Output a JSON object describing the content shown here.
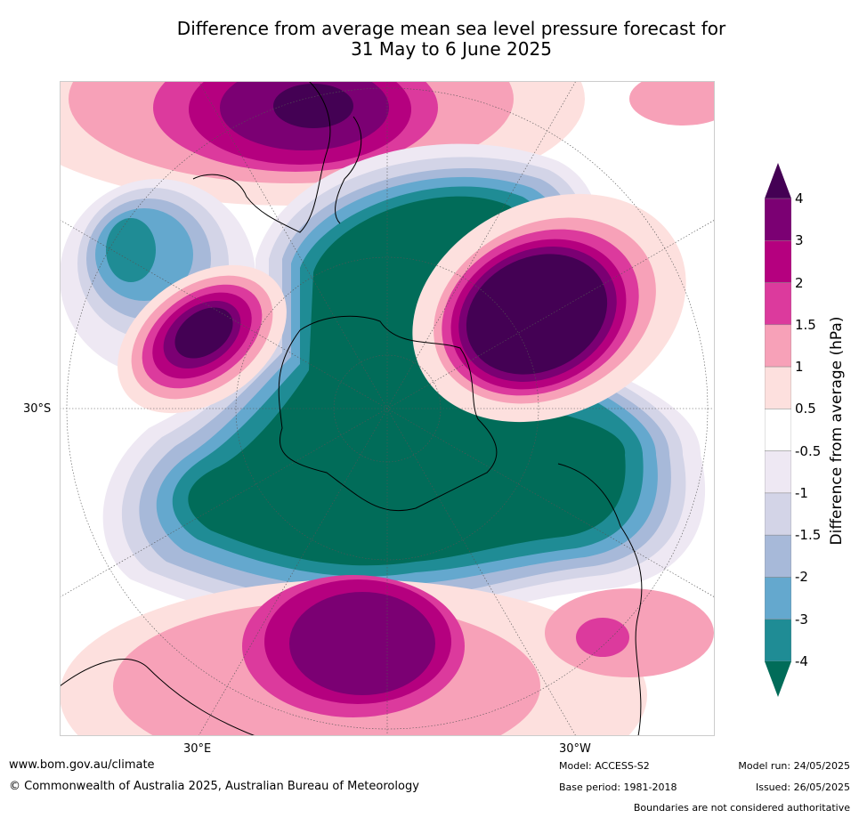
{
  "title": {
    "line1": "Difference from average mean sea level pressure forecast for",
    "line2": "31 May to 6 June 2025"
  },
  "map": {
    "lat_label": "30°S",
    "lon_label_left": "30°E",
    "lon_label_right": "30°W"
  },
  "colorbar": {
    "label": "Difference from average (hPa)",
    "ticks": [
      "4",
      "3",
      "2",
      "1.5",
      "1",
      "0.5",
      "-0.5",
      "-1",
      "-1.5",
      "-2",
      "-3",
      "-4"
    ],
    "colors": [
      "#440154",
      "#7b0073",
      "#b5007f",
      "#dc3a9d",
      "#f7a1b8",
      "#fde0de",
      "#ffffff",
      "#eee8f3",
      "#d3d4e7",
      "#a7b9d9",
      "#64a8ce",
      "#1f8c95",
      "#016c59"
    ]
  },
  "footer": {
    "website": "www.bom.gov.au/climate",
    "copyright": "© Commonwealth of Australia 2025, Australian Bureau of Meteorology",
    "model": "Model: ACCESS-S2",
    "base_period": "Base period: 1981-2018",
    "model_run": "Model run: 24/05/2025",
    "issued": "Issued: 26/05/2025",
    "disclaimer": "Boundaries are not considered authoritative"
  }
}
